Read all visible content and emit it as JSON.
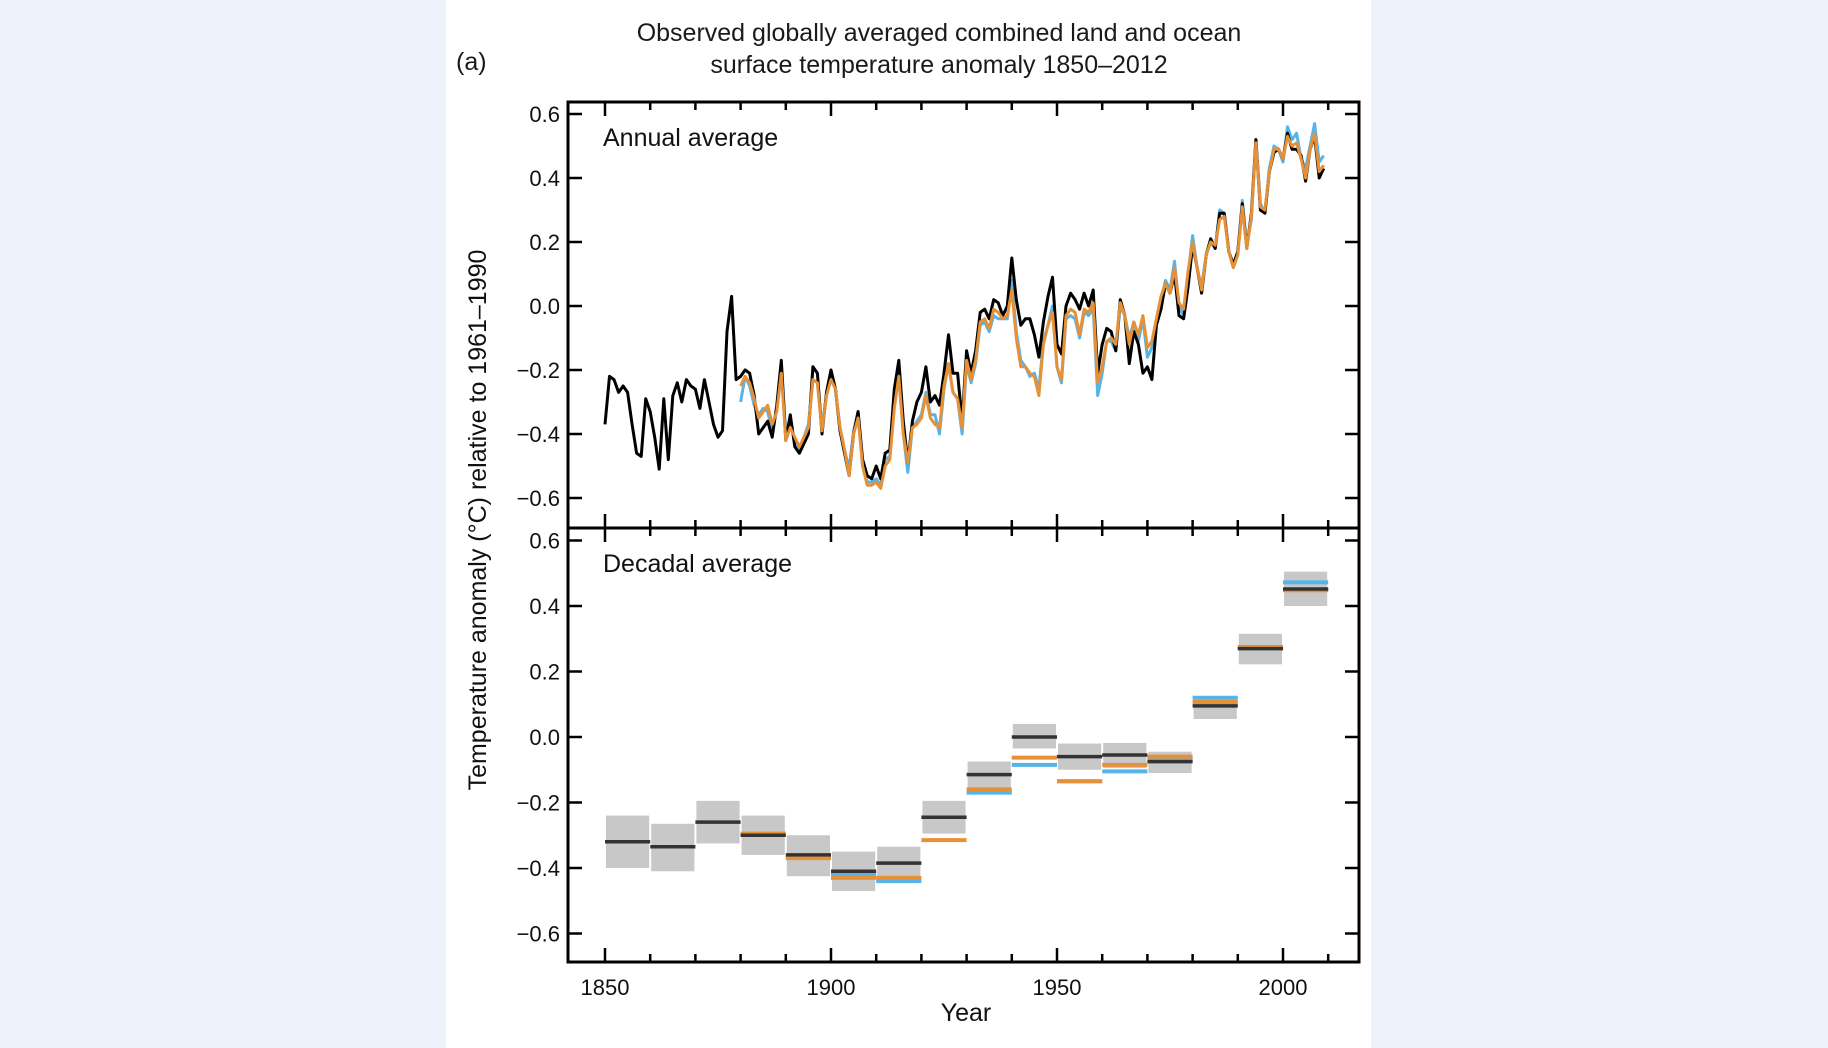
{
  "figure_label": "(a)",
  "title_line1": "Observed globally averaged combined land and ocean",
  "title_line2": "surface temperature anomaly 1850–2012",
  "colors": {
    "hadcrut4": "#000000",
    "blue_dataset": "#56b4e9",
    "orange_dataset": "#e69138",
    "uncertainty_box": "#c8c8c8",
    "decadal_black": "#333333",
    "background": "#eef3fb"
  },
  "chart_data": [
    {
      "type": "line",
      "title": "Annual average",
      "xlabel": "Year",
      "ylabel": "Temperature anomaly (°C) relative to 1961–1990",
      "xlim": [
        1842,
        2017
      ],
      "ylim": [
        -0.65,
        0.65
      ],
      "xticks": [
        1850,
        1900,
        1950,
        2000
      ],
      "yticks": [
        -0.6,
        -0.4,
        -0.2,
        0.0,
        0.2,
        0.4,
        0.6
      ],
      "ytick_labels": [
        "−0.6",
        "−0.4",
        "−0.2",
        "0.0",
        "0.2",
        "0.4",
        "0.6"
      ],
      "grid": false,
      "series": [
        {
          "name": "black",
          "start_year": 1850,
          "values": [
            -0.37,
            -0.22,
            -0.23,
            -0.27,
            -0.25,
            -0.27,
            -0.37,
            -0.46,
            -0.47,
            -0.29,
            -0.33,
            -0.41,
            -0.51,
            -0.29,
            -0.48,
            -0.28,
            -0.24,
            -0.3,
            -0.23,
            -0.25,
            -0.26,
            -0.32,
            -0.23,
            -0.3,
            -0.37,
            -0.41,
            -0.39,
            -0.08,
            0.03,
            -0.23,
            -0.22,
            -0.2,
            -0.21,
            -0.28,
            -0.4,
            -0.38,
            -0.36,
            -0.41,
            -0.31,
            -0.17,
            -0.42,
            -0.34,
            -0.44,
            -0.46,
            -0.43,
            -0.4,
            -0.19,
            -0.21,
            -0.4,
            -0.27,
            -0.2,
            -0.26,
            -0.39,
            -0.46,
            -0.53,
            -0.4,
            -0.33,
            -0.48,
            -0.53,
            -0.54,
            -0.5,
            -0.54,
            -0.46,
            -0.45,
            -0.26,
            -0.17,
            -0.36,
            -0.49,
            -0.36,
            -0.3,
            -0.27,
            -0.19,
            -0.3,
            -0.28,
            -0.31,
            -0.21,
            -0.09,
            -0.21,
            -0.21,
            -0.36,
            -0.14,
            -0.21,
            -0.14,
            -0.02,
            -0.01,
            -0.04,
            0.02,
            0.01,
            -0.03,
            0.0,
            0.15,
            0.02,
            -0.06,
            -0.04,
            -0.04,
            -0.09,
            -0.16,
            -0.05,
            0.03,
            0.09,
            -0.12,
            -0.15,
            0.0,
            0.04,
            0.02,
            -0.01,
            0.04,
            0.0,
            0.05,
            -0.21,
            -0.12,
            -0.07,
            -0.08,
            -0.14,
            0.02,
            -0.03,
            -0.18,
            -0.08,
            -0.12,
            -0.21,
            -0.19,
            -0.23,
            -0.06,
            -0.01,
            0.07,
            0.04,
            0.1,
            -0.03,
            -0.04,
            0.06,
            0.19,
            0.12,
            0.04,
            0.16,
            0.21,
            0.18,
            0.29,
            0.29,
            0.17,
            0.13,
            0.17,
            0.32,
            0.18,
            0.29,
            0.52,
            0.3,
            0.29,
            0.42,
            0.48,
            0.49,
            0.46,
            0.54,
            0.49,
            0.49,
            0.47,
            0.39,
            0.49,
            0.53,
            0.4,
            0.43
          ]
        },
        {
          "name": "blue",
          "start_year": 1880,
          "values": [
            -0.3,
            -0.22,
            -0.25,
            -0.31,
            -0.34,
            -0.32,
            -0.33,
            -0.39,
            -0.32,
            -0.18,
            -0.4,
            -0.37,
            -0.42,
            -0.45,
            -0.41,
            -0.37,
            -0.23,
            -0.24,
            -0.38,
            -0.28,
            -0.22,
            -0.26,
            -0.38,
            -0.45,
            -0.51,
            -0.39,
            -0.33,
            -0.5,
            -0.55,
            -0.55,
            -0.54,
            -0.56,
            -0.48,
            -0.47,
            -0.3,
            -0.22,
            -0.4,
            -0.52,
            -0.38,
            -0.36,
            -0.34,
            -0.27,
            -0.34,
            -0.34,
            -0.4,
            -0.26,
            -0.18,
            -0.27,
            -0.29,
            -0.4,
            -0.18,
            -0.24,
            -0.18,
            -0.06,
            -0.05,
            -0.08,
            -0.03,
            -0.04,
            -0.04,
            -0.04,
            0.08,
            -0.08,
            -0.17,
            -0.19,
            -0.22,
            -0.21,
            -0.26,
            -0.11,
            -0.06,
            0.0,
            -0.19,
            -0.24,
            -0.04,
            -0.03,
            -0.04,
            -0.1,
            -0.02,
            -0.03,
            -0.01,
            -0.28,
            -0.21,
            -0.11,
            -0.11,
            -0.14,
            0.0,
            -0.03,
            -0.1,
            -0.05,
            -0.11,
            -0.04,
            -0.16,
            -0.13,
            -0.04,
            0.02,
            0.08,
            0.05,
            0.14,
            0.0,
            -0.03,
            0.1,
            0.22,
            0.12,
            0.06,
            0.16,
            0.2,
            0.18,
            0.3,
            0.29,
            0.17,
            0.12,
            0.16,
            0.33,
            0.19,
            0.27,
            0.52,
            0.32,
            0.29,
            0.43,
            0.5,
            0.49,
            0.45,
            0.56,
            0.52,
            0.54,
            0.46,
            0.43,
            0.5,
            0.57,
            0.45,
            0.47
          ]
        },
        {
          "name": "orange",
          "start_year": 1880,
          "values": [
            -0.25,
            -0.22,
            -0.24,
            -0.29,
            -0.35,
            -0.33,
            -0.31,
            -0.37,
            -0.33,
            -0.21,
            -0.42,
            -0.38,
            -0.41,
            -0.44,
            -0.41,
            -0.38,
            -0.23,
            -0.24,
            -0.39,
            -0.28,
            -0.23,
            -0.26,
            -0.38,
            -0.45,
            -0.53,
            -0.4,
            -0.35,
            -0.5,
            -0.56,
            -0.56,
            -0.55,
            -0.57,
            -0.5,
            -0.48,
            -0.32,
            -0.22,
            -0.4,
            -0.49,
            -0.38,
            -0.37,
            -0.35,
            -0.28,
            -0.35,
            -0.37,
            -0.38,
            -0.25,
            -0.18,
            -0.27,
            -0.29,
            -0.38,
            -0.17,
            -0.23,
            -0.17,
            -0.05,
            -0.04,
            -0.07,
            -0.01,
            -0.02,
            -0.04,
            -0.03,
            0.05,
            -0.1,
            -0.19,
            -0.19,
            -0.21,
            -0.22,
            -0.28,
            -0.12,
            -0.06,
            -0.02,
            -0.19,
            -0.23,
            -0.03,
            -0.01,
            -0.02,
            -0.09,
            -0.01,
            -0.02,
            0.01,
            -0.24,
            -0.19,
            -0.11,
            -0.1,
            -0.12,
            0.01,
            -0.03,
            -0.12,
            -0.05,
            -0.09,
            -0.03,
            -0.13,
            -0.11,
            -0.04,
            0.03,
            0.07,
            0.04,
            0.12,
            0.01,
            -0.01,
            0.11,
            0.2,
            0.12,
            0.05,
            0.16,
            0.2,
            0.19,
            0.27,
            0.28,
            0.17,
            0.12,
            0.16,
            0.31,
            0.18,
            0.28,
            0.51,
            0.31,
            0.3,
            0.42,
            0.49,
            0.49,
            0.46,
            0.53,
            0.5,
            0.51,
            0.46,
            0.4,
            0.49,
            0.54,
            0.42,
            0.44
          ]
        }
      ]
    },
    {
      "type": "bar",
      "title": "Decadal average",
      "xlabel": "Year",
      "xlim": [
        1842,
        2017
      ],
      "ylim": [
        -0.7,
        0.65
      ],
      "xticks": [
        1850,
        1900,
        1950,
        2000
      ],
      "yticks": [
        -0.6,
        -0.4,
        -0.2,
        0.0,
        0.2,
        0.4,
        0.6
      ],
      "ytick_labels": [
        "−0.6",
        "−0.4",
        "−0.2",
        "0.0",
        "0.2",
        "0.4",
        "0.6"
      ],
      "grid": false,
      "decades": [
        {
          "start": 1850,
          "black": -0.32,
          "unc_low": -0.4,
          "unc_high": -0.24
        },
        {
          "start": 1860,
          "black": -0.335,
          "unc_low": -0.41,
          "unc_high": -0.265
        },
        {
          "start": 1870,
          "black": -0.26,
          "unc_low": -0.325,
          "unc_high": -0.195
        },
        {
          "start": 1880,
          "black": -0.3,
          "orange": -0.295,
          "unc_low": -0.36,
          "unc_high": -0.24
        },
        {
          "start": 1890,
          "black": -0.36,
          "orange": -0.37,
          "unc_low": -0.425,
          "unc_high": -0.3
        },
        {
          "start": 1900,
          "black": -0.41,
          "blue": -0.42,
          "orange": -0.43,
          "unc_low": -0.47,
          "unc_high": -0.35
        },
        {
          "start": 1910,
          "black": -0.385,
          "blue": -0.44,
          "orange": -0.43,
          "unc_low": -0.44,
          "unc_high": -0.335
        },
        {
          "start": 1920,
          "black": -0.245,
          "orange": -0.315,
          "unc_low": -0.295,
          "unc_high": -0.195
        },
        {
          "start": 1930,
          "black": -0.115,
          "blue": -0.17,
          "orange": -0.16,
          "unc_low": -0.155,
          "unc_high": -0.075
        },
        {
          "start": 1940,
          "black": 0.0,
          "blue": -0.085,
          "orange": -0.063,
          "unc_low": -0.035,
          "unc_high": 0.04
        },
        {
          "start": 1950,
          "black": -0.06,
          "blue": -0.135,
          "orange": -0.135,
          "unc_low": -0.1,
          "unc_high": -0.02
        },
        {
          "start": 1960,
          "black": -0.055,
          "blue": -0.105,
          "orange": -0.085,
          "unc_low": -0.095,
          "unc_high": -0.018
        },
        {
          "start": 1970,
          "black": -0.075,
          "blue": -0.07,
          "orange": -0.06,
          "unc_low": -0.11,
          "unc_high": -0.045
        },
        {
          "start": 1980,
          "black": 0.095,
          "blue": 0.12,
          "orange": 0.107,
          "unc_low": 0.055,
          "unc_high": 0.125
        },
        {
          "start": 1990,
          "black": 0.27,
          "blue": 0.275,
          "orange": 0.272,
          "unc_low": 0.222,
          "unc_high": 0.315
        },
        {
          "start": 2000,
          "black": 0.452,
          "blue": 0.472,
          "orange": 0.448,
          "unc_low": 0.4,
          "unc_high": 0.505
        }
      ]
    }
  ]
}
